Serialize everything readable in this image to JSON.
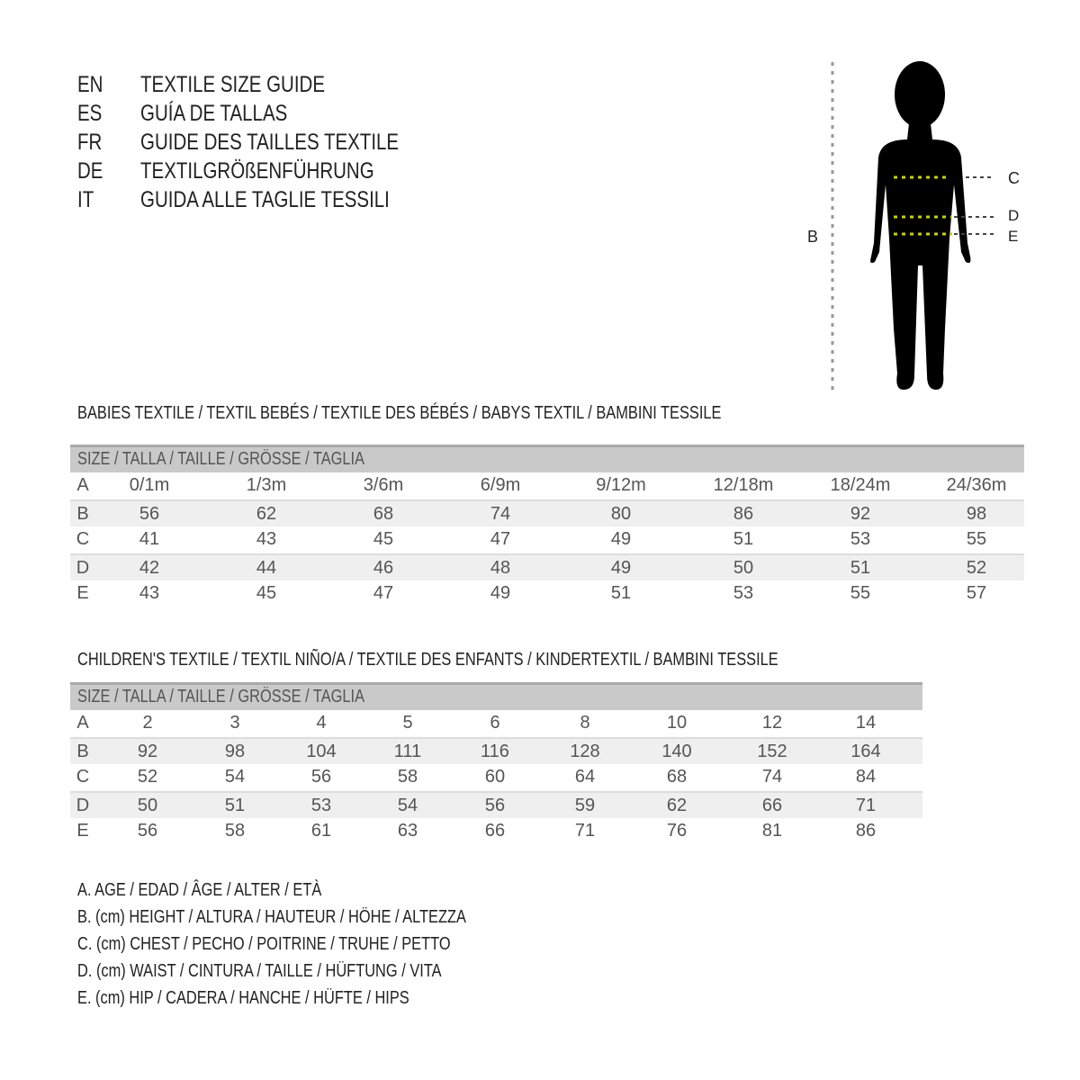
{
  "titles": [
    {
      "code": "EN",
      "text": "TEXTILE SIZE GUIDE"
    },
    {
      "code": "ES",
      "text": "GUÍA DE TALLAS"
    },
    {
      "code": "FR",
      "text": "GUIDE DES TAILLES TEXTILE"
    },
    {
      "code": "DE",
      "text": "TEXTILGRÖßENFÜHRUNG"
    },
    {
      "code": "IT",
      "text": "GUIDA ALLE TAGLIE TESSILI"
    }
  ],
  "figure": {
    "labels": {
      "b": "B",
      "c": "C",
      "d": "D",
      "e": "E"
    },
    "measure_line_color": "#c8d400"
  },
  "babies": {
    "heading": "BABIES TEXTILE / TEXTIL BEBÉS / TEXTILE DES BÉBÉS / BABYS TEXTIL  / BAMBINI TESSILE",
    "header": "SIZE / TALLA / TAILLE / GRÖSSE / TAGLIA",
    "rows": [
      {
        "label": "A",
        "values": [
          "0/1m",
          "1/3m",
          "3/6m",
          "6/9m",
          "9/12m",
          "12/18m",
          "18/24m",
          "24/36m"
        ]
      },
      {
        "label": "B",
        "values": [
          "56",
          "62",
          "68",
          "74",
          "80",
          "86",
          "92",
          "98"
        ]
      },
      {
        "label": "C",
        "values": [
          "41",
          "43",
          "45",
          "47",
          "49",
          "51",
          "53",
          "55"
        ]
      },
      {
        "label": "D",
        "values": [
          "42",
          "44",
          "46",
          "48",
          "49",
          "50",
          "51",
          "52"
        ]
      },
      {
        "label": "E",
        "values": [
          "43",
          "45",
          "47",
          "49",
          "51",
          "53",
          "55",
          "57"
        ]
      }
    ]
  },
  "children": {
    "heading": "CHILDREN'S TEXTILE / TEXTIL NIÑO/A / TEXTILE DES ENFANTS / KINDERTEXTIL / BAMBINI TESSILE",
    "header": "SIZE / TALLA / TAILLE / GRÖSSE / TAGLIA",
    "rows": [
      {
        "label": "A",
        "values": [
          "2",
          "3",
          "4",
          "5",
          "6",
          "8",
          "10",
          "12",
          "14"
        ]
      },
      {
        "label": "B",
        "values": [
          "92",
          "98",
          "104",
          "111",
          "116",
          "128",
          "140",
          "152",
          "164"
        ]
      },
      {
        "label": "C",
        "values": [
          "52",
          "54",
          "56",
          "58",
          "60",
          "64",
          "68",
          "74",
          "84"
        ]
      },
      {
        "label": "D",
        "values": [
          "50",
          "51",
          "53",
          "54",
          "56",
          "59",
          "62",
          "66",
          "71"
        ]
      },
      {
        "label": "E",
        "values": [
          "56",
          "58",
          "61",
          "63",
          "66",
          "71",
          "76",
          "81",
          "86"
        ]
      }
    ]
  },
  "legend": [
    "A. AGE / EDAD / ÂGE / ALTER / ETÀ",
    "B. (cm) HEIGHT / ALTURA / HAUTEUR / HÖHE / ALTEZZA",
    "C. (cm) CHEST / PECHO / POITRINE / TRUHE / PETTO",
    "D. (cm) WAIST / CINTURA / TAILLE / HÜFTUNG / VITA",
    "E. (cm) HIP / CADERA / HANCHE / HÜFTE / HIPS"
  ]
}
